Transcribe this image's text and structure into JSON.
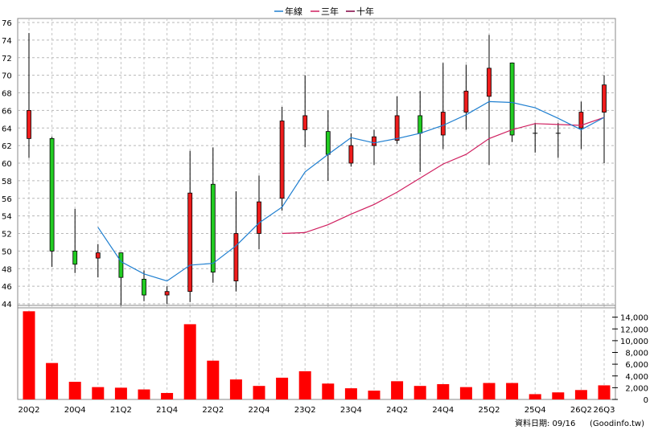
{
  "chart_data": {
    "type": "candlestick",
    "legend": [
      {
        "name": "年線",
        "color": "#1f7fd0"
      },
      {
        "name": "三年",
        "color": "#d02060"
      },
      {
        "name": "十年",
        "color": "#800040"
      }
    ],
    "quarters": [
      "20Q2",
      "20Q3",
      "20Q4",
      "21Q1",
      "21Q2",
      "21Q3",
      "21Q4",
      "22Q1",
      "22Q2",
      "22Q3",
      "22Q4",
      "23Q1",
      "23Q2",
      "23Q3",
      "23Q4",
      "24Q1",
      "24Q2",
      "24Q3",
      "24Q4",
      "25Q1",
      "25Q2",
      "25Q3",
      "25Q4",
      "26Q1",
      "26Q2",
      "26Q3"
    ],
    "x_tick_labels": [
      "20Q2",
      "20Q4",
      "21Q2",
      "21Q4",
      "22Q2",
      "22Q4",
      "23Q2",
      "23Q4",
      "24Q2",
      "24Q4",
      "25Q2",
      "25Q4",
      "26Q2",
      "26Q3"
    ],
    "price_axis": {
      "min": 44,
      "max": 76,
      "step": 2,
      "ticks": [
        "44",
        "46",
        "48",
        "50",
        "52",
        "54",
        "56",
        "58",
        "60",
        "62",
        "64",
        "66",
        "68",
        "70",
        "72",
        "74",
        "76"
      ]
    },
    "volume_axis": {
      "min": 0,
      "max": 16000,
      "ticks": [
        "0",
        "2,000",
        "4,000",
        "6,000",
        "8,000",
        "10,000",
        "12,000",
        "14,000"
      ]
    },
    "candles": [
      {
        "open": 62.8,
        "close": 66.0,
        "high": 74.8,
        "low": 60.6
      },
      {
        "open": 62.8,
        "close": 50.0,
        "high": 63.0,
        "low": 48.2
      },
      {
        "open": 50.0,
        "close": 48.5,
        "high": 54.8,
        "low": 47.5
      },
      {
        "open": 49.2,
        "close": 49.8,
        "high": 50.8,
        "low": 47.0
      },
      {
        "open": 49.8,
        "close": 47.0,
        "high": 49.8,
        "low": 43.6
      },
      {
        "open": 46.8,
        "close": 45.0,
        "high": 47.8,
        "low": 44.3
      },
      {
        "open": 45.0,
        "close": 45.4,
        "high": 46.0,
        "low": 44.0
      },
      {
        "open": 45.4,
        "close": 56.6,
        "high": 61.4,
        "low": 44.2
      },
      {
        "open": 57.6,
        "close": 47.6,
        "high": 61.8,
        "low": 46.4
      },
      {
        "open": 46.6,
        "close": 52.0,
        "high": 56.8,
        "low": 45.4
      },
      {
        "open": 52.0,
        "close": 55.6,
        "high": 58.6,
        "low": 50.2
      },
      {
        "open": 56.0,
        "close": 64.8,
        "high": 66.4,
        "low": 54.6
      },
      {
        "open": 63.8,
        "close": 65.4,
        "high": 70.0,
        "low": 61.8
      },
      {
        "open": 63.6,
        "close": 61.0,
        "high": 66.0,
        "low": 58.0
      },
      {
        "open": 60.0,
        "close": 62.0,
        "high": 63.4,
        "low": 59.6
      },
      {
        "open": 62.0,
        "close": 63.0,
        "high": 63.8,
        "low": 59.8
      },
      {
        "open": 62.6,
        "close": 65.4,
        "high": 67.6,
        "low": 62.2
      },
      {
        "open": 65.4,
        "close": 63.4,
        "high": 68.2,
        "low": 59.0
      },
      {
        "open": 63.2,
        "close": 65.8,
        "high": 71.4,
        "low": 61.6
      },
      {
        "open": 65.8,
        "close": 68.2,
        "high": 71.2,
        "low": 63.8
      },
      {
        "open": 67.6,
        "close": 70.8,
        "high": 74.6,
        "low": 59.8
      },
      {
        "open": 71.4,
        "close": 63.2,
        "high": 71.4,
        "low": 62.4
      },
      {
        "open": 63.4,
        "close": 63.4,
        "high": 64.6,
        "low": 61.2
      },
      {
        "open": 63.4,
        "close": 63.4,
        "high": 64.6,
        "low": 60.6
      },
      {
        "open": 64.0,
        "close": 65.8,
        "high": 67.0,
        "low": 61.6
      },
      {
        "open": 65.8,
        "close": 68.9,
        "high": 70.0,
        "low": 60.0
      }
    ],
    "year_line": [
      null,
      null,
      null,
      52.7,
      48.8,
      47.4,
      46.6,
      48.4,
      48.6,
      50.6,
      53.2,
      55.0,
      59.0,
      61.0,
      62.9,
      62.3,
      62.8,
      63.4,
      64.3,
      65.5,
      67.0,
      66.9,
      66.3,
      65.1,
      63.8,
      65.2
    ],
    "three_year_line": [
      null,
      null,
      null,
      null,
      null,
      null,
      null,
      null,
      null,
      null,
      null,
      52.0,
      52.1,
      53.0,
      54.2,
      55.3,
      56.7,
      58.3,
      59.9,
      61.0,
      62.8,
      63.8,
      64.5,
      64.4,
      64.3,
      65.2
    ],
    "volumes": [
      15000,
      6200,
      3000,
      2100,
      2000,
      1700,
      1100,
      12800,
      6600,
      3400,
      2300,
      3700,
      4800,
      2700,
      1900,
      1500,
      3100,
      2300,
      2600,
      2100,
      2800,
      2800,
      900,
      1200,
      1600,
      2400
    ]
  },
  "footer": {
    "date_label": "資料日期: 09/16",
    "source": "(Goodinfo.tw)"
  }
}
